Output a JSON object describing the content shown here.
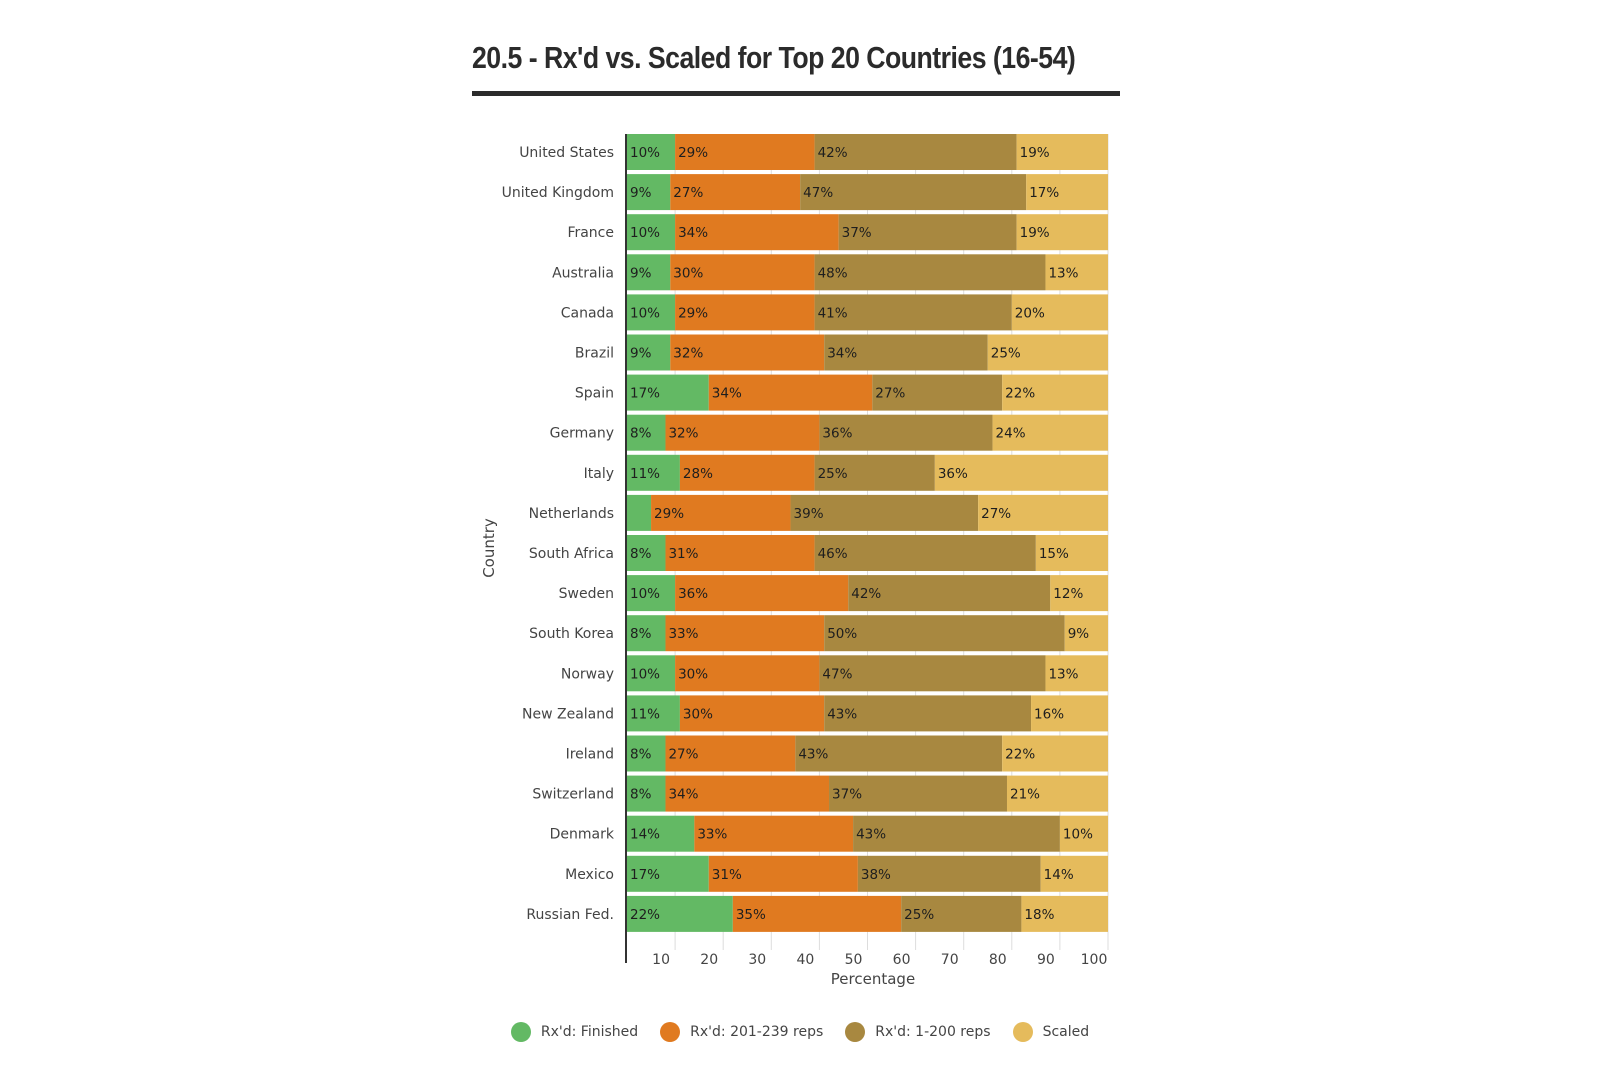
{
  "chart_data": {
    "type": "bar",
    "orientation": "horizontal",
    "stacked": true,
    "title": "20.5 - Rx'd vs. Scaled for Top 20 Countries (16-54)",
    "xlabel": "Percentage",
    "ylabel": "Country",
    "xlim": [
      0,
      100
    ],
    "xticks": [
      10,
      20,
      30,
      40,
      50,
      60,
      70,
      80,
      90,
      100
    ],
    "grid": "vertical",
    "legend_position": "bottom",
    "categories": [
      "United States",
      "United Kingdom",
      "France",
      "Australia",
      "Canada",
      "Brazil",
      "Spain",
      "Germany",
      "Italy",
      "Netherlands",
      "South Africa",
      "Sweden",
      "South Korea",
      "Norway",
      "New Zealand",
      "Ireland",
      "Switzerland",
      "Denmark",
      "Mexico",
      "Russian Fed."
    ],
    "series": [
      {
        "name": "Rx'd: Finished",
        "color": "#63b964",
        "values": [
          10,
          9,
          10,
          9,
          10,
          9,
          17,
          8,
          11,
          5,
          8,
          10,
          8,
          10,
          11,
          8,
          8,
          14,
          17,
          22
        ],
        "labels": [
          "10%",
          "9%",
          "10%",
          "9%",
          "10%",
          "9%",
          "17%",
          "8%",
          "11%",
          "",
          "8%",
          "10%",
          "8%",
          "10%",
          "11%",
          "8%",
          "8%",
          "14%",
          "17%",
          "22%"
        ]
      },
      {
        "name": "Rx'd: 201-239 reps",
        "color": "#e07a20",
        "values": [
          29,
          27,
          34,
          30,
          29,
          32,
          34,
          32,
          28,
          29,
          31,
          36,
          33,
          30,
          30,
          27,
          34,
          33,
          31,
          35
        ],
        "labels": [
          "29%",
          "27%",
          "34%",
          "30%",
          "29%",
          "32%",
          "34%",
          "32%",
          "28%",
          "29%",
          "31%",
          "36%",
          "33%",
          "30%",
          "30%",
          "27%",
          "34%",
          "33%",
          "31%",
          "35%"
        ]
      },
      {
        "name": "Rx'd: 1-200 reps",
        "color": "#a88840",
        "values": [
          42,
          47,
          37,
          48,
          41,
          34,
          27,
          36,
          25,
          39,
          46,
          42,
          50,
          47,
          43,
          43,
          37,
          43,
          38,
          25
        ],
        "labels": [
          "42%",
          "47%",
          "37%",
          "48%",
          "41%",
          "34%",
          "27%",
          "36%",
          "25%",
          "39%",
          "46%",
          "42%",
          "50%",
          "47%",
          "43%",
          "43%",
          "37%",
          "43%",
          "38%",
          "25%"
        ]
      },
      {
        "name": "Scaled",
        "color": "#e5bb5c",
        "values": [
          19,
          17,
          19,
          13,
          20,
          25,
          22,
          24,
          36,
          27,
          15,
          12,
          9,
          13,
          16,
          22,
          21,
          10,
          14,
          18
        ],
        "labels": [
          "19%",
          "17%",
          "19%",
          "13%",
          "20%",
          "25%",
          "22%",
          "24%",
          "36%",
          "27%",
          "15%",
          "12%",
          "9%",
          "13%",
          "16%",
          "22%",
          "21%",
          "10%",
          "14%",
          "18%"
        ]
      }
    ]
  }
}
